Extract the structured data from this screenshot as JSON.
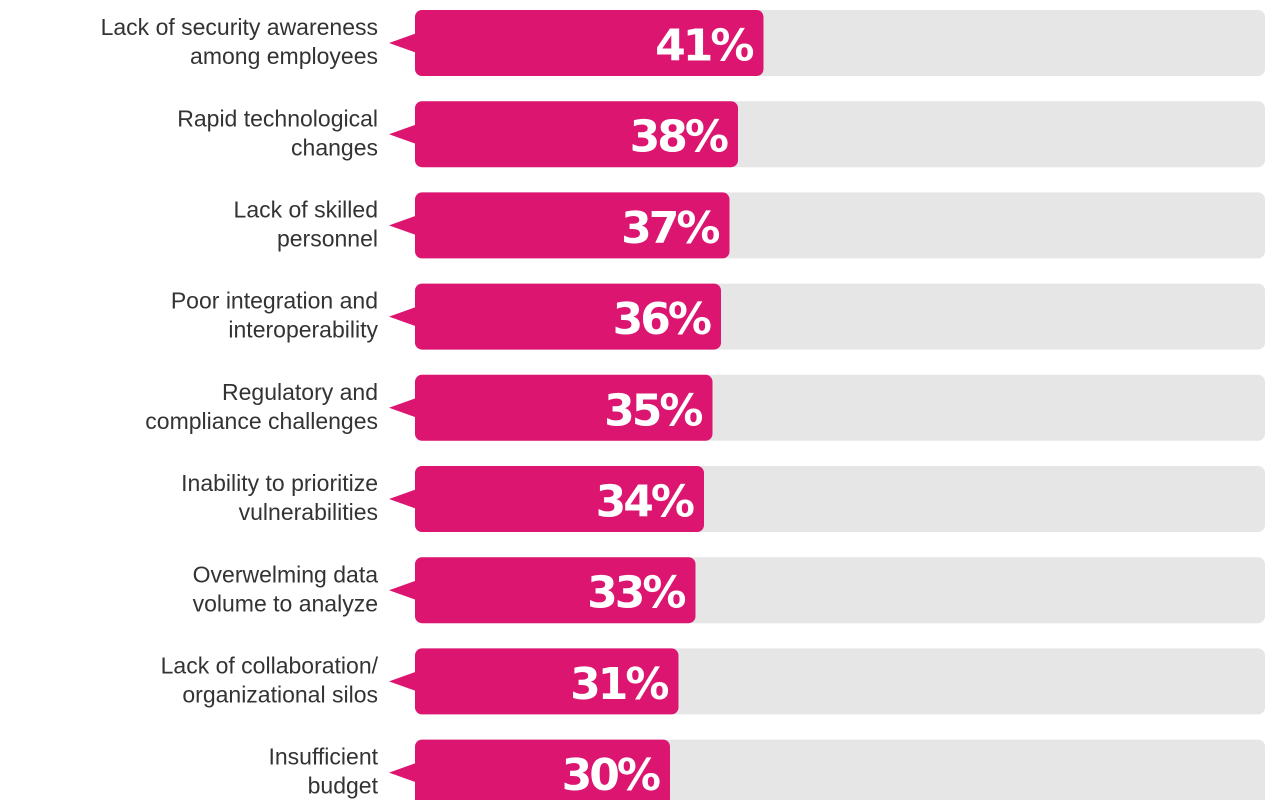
{
  "chart_data": {
    "type": "hbar",
    "categories": [
      [
        "Lack of security awareness",
        "among employees"
      ],
      [
        "Rapid technological",
        "changes"
      ],
      [
        "Lack of skilled",
        "personnel"
      ],
      [
        "Poor integration and",
        "interoperability"
      ],
      [
        "Regulatory and",
        "compliance challenges"
      ],
      [
        "Inability to prioritize",
        "vulnerabilities"
      ],
      [
        "Overwelming data",
        "volume to analyze"
      ],
      [
        "Lack of collaboration/",
        "organizational silos"
      ],
      [
        "Insufficient",
        "budget"
      ]
    ],
    "values": [
      41,
      38,
      37,
      36,
      35,
      34,
      33,
      31,
      30
    ],
    "value_labels": [
      "41%",
      "38%",
      "37%",
      "36%",
      "35%",
      "34%",
      "33%",
      "31%",
      "30%"
    ],
    "color": "#dc1670",
    "track_color": "#e6e6e6",
    "xlim": [
      0,
      100
    ]
  }
}
